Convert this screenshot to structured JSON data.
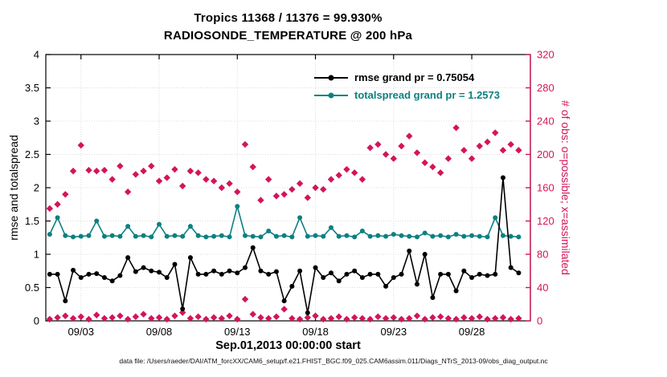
{
  "titles": {
    "line1": "Tropics 11368 / 11376 = 99.930%",
    "line2": "RADIOSONDE_TEMPERATURE @ 200 hPa"
  },
  "legend": {
    "items": [
      {
        "label": "rmse grand pr = 0.75054",
        "color": "#000000"
      },
      {
        "label": "totalspread grand pr = 1.2573",
        "color": "#0d8080"
      }
    ]
  },
  "colors": {
    "rmse": "#000000",
    "totalspread": "#0d8080",
    "obs": "#d4145a",
    "grid": "#dcdcdc",
    "axis": "#000000"
  },
  "axes": {
    "left": {
      "label": "rmse and totalspread",
      "ticks": [
        0,
        0.5,
        1,
        1.5,
        2,
        2.5,
        3,
        3.5,
        4
      ],
      "tick_labels": [
        "0",
        "0.5",
        "1",
        "1.5",
        "2",
        "2.5",
        "3",
        "3.5",
        "4"
      ],
      "range": [
        0,
        4
      ]
    },
    "right": {
      "label": "# of obs: o=possible; x=assimilated",
      "ticks": [
        0,
        40,
        80,
        120,
        160,
        200,
        240,
        280,
        320
      ],
      "tick_labels": [
        "0",
        "40",
        "80",
        "120",
        "160",
        "200",
        "240",
        "280",
        "320"
      ],
      "range": [
        0,
        320
      ]
    },
    "x": {
      "label": "Sep.01,2013 00:00:00 start",
      "tick_days": [
        3,
        8,
        13,
        18,
        23,
        28
      ],
      "tick_labels": [
        "09/03",
        "09/08",
        "09/13",
        "09/18",
        "09/23",
        "09/28"
      ],
      "range_days": [
        0.75,
        31.75
      ]
    }
  },
  "caption": "data file: /Users/raeder/DAI/ATM_forcXX/CAM6_setup/f.e21.FHIST_BGC.f09_025.CAM6assim.011/Diags_NTrS_2013-09/obs_diag_output.nc",
  "chart_data": {
    "type": "line",
    "title": "Tropics 11368 / 11376 = 99.930% | RADIOSONDE_TEMPERATURE @ 200 hPa",
    "xlabel": "Sep.01,2013 00:00:00 start",
    "ylabel_left": "rmse and totalspread",
    "ylabel_right": "# of obs: o=possible; x=assimilated",
    "ylim_left": [
      0,
      4
    ],
    "ylim_right": [
      0,
      320
    ],
    "grid": true,
    "legend_position": "top-center-inside",
    "x_unit": "day of September 2013, 12-hourly",
    "x": [
      1,
      1.5,
      2,
      2.5,
      3,
      3.5,
      4,
      4.5,
      5,
      5.5,
      6,
      6.5,
      7,
      7.5,
      8,
      8.5,
      9,
      9.5,
      10,
      10.5,
      11,
      11.5,
      12,
      12.5,
      13,
      13.5,
      14,
      14.5,
      15,
      15.5,
      16,
      16.5,
      17,
      17.5,
      18,
      18.5,
      19,
      19.5,
      20,
      20.5,
      21,
      21.5,
      22,
      22.5,
      23,
      23.5,
      24,
      24.5,
      25,
      25.5,
      26,
      26.5,
      27,
      27.5,
      28,
      28.5,
      29,
      29.5,
      30,
      30.5,
      31
    ],
    "series": [
      {
        "name": "num-obs-possible-assimilated",
        "axis": "right",
        "color": "#d4145a",
        "marker": "diamond",
        "line": false,
        "values": [
          135,
          140,
          152,
          180,
          211,
          181,
          180,
          181,
          170,
          186,
          155,
          176,
          180,
          186,
          168,
          172,
          182,
          162,
          180,
          178,
          170,
          168,
          160,
          165,
          155,
          212,
          185,
          145,
          170,
          150,
          152,
          158,
          165,
          148,
          160,
          158,
          170,
          175,
          182,
          178,
          170,
          208,
          212,
          200,
          195,
          210,
          222,
          202,
          190,
          185,
          178,
          195,
          232,
          205,
          195,
          210,
          215,
          226,
          205,
          212,
          205
        ]
      },
      {
        "name": "num-obs-near-zero",
        "axis": "right",
        "color": "#d4145a",
        "marker": "diamond",
        "line": false,
        "values": [
          2,
          4,
          6,
          3,
          5,
          2,
          7,
          3,
          4,
          6,
          2,
          5,
          8,
          3,
          4,
          2,
          6,
          10,
          3,
          5,
          2,
          4,
          3,
          6,
          2,
          26,
          8,
          4,
          3,
          5,
          14,
          3,
          2,
          4,
          6,
          2,
          3,
          5,
          2,
          4,
          3,
          2,
          5,
          3,
          4,
          2,
          3,
          6,
          2,
          4,
          5,
          3,
          2,
          4,
          3,
          5,
          2,
          3,
          4,
          2,
          3
        ]
      },
      {
        "name": "totalspread",
        "axis": "left",
        "color": "#0d8080",
        "marker": "circle",
        "line": true,
        "values": [
          1.3,
          1.55,
          1.28,
          1.26,
          1.27,
          1.28,
          1.5,
          1.27,
          1.28,
          1.27,
          1.42,
          1.27,
          1.28,
          1.26,
          1.45,
          1.27,
          1.28,
          1.27,
          1.42,
          1.28,
          1.26,
          1.27,
          1.28,
          1.26,
          1.72,
          1.28,
          1.27,
          1.26,
          1.35,
          1.27,
          1.28,
          1.26,
          1.55,
          1.27,
          1.28,
          1.27,
          1.4,
          1.27,
          1.28,
          1.26,
          1.35,
          1.27,
          1.28,
          1.27,
          1.3,
          1.28,
          1.27,
          1.26,
          1.32,
          1.27,
          1.28,
          1.26,
          1.3,
          1.27,
          1.28,
          1.27,
          1.26,
          1.55,
          1.28,
          1.27,
          1.26
        ]
      },
      {
        "name": "rmse",
        "axis": "left",
        "color": "#000000",
        "marker": "circle",
        "line": true,
        "values": [
          0.7,
          0.7,
          0.3,
          0.76,
          0.65,
          0.7,
          0.71,
          0.65,
          0.6,
          0.68,
          0.95,
          0.74,
          0.8,
          0.75,
          0.73,
          0.65,
          0.85,
          0.18,
          0.95,
          0.7,
          0.7,
          0.75,
          0.7,
          0.75,
          0.72,
          0.8,
          1.1,
          0.75,
          0.7,
          0.74,
          0.3,
          0.52,
          0.75,
          0.12,
          0.8,
          0.65,
          0.72,
          0.6,
          0.7,
          0.75,
          0.65,
          0.7,
          0.7,
          0.52,
          0.65,
          0.7,
          1.05,
          0.55,
          1.0,
          0.35,
          0.7,
          0.7,
          0.45,
          0.75,
          0.65,
          0.7,
          0.68,
          0.7,
          2.15,
          0.8,
          0.72
        ]
      }
    ]
  }
}
